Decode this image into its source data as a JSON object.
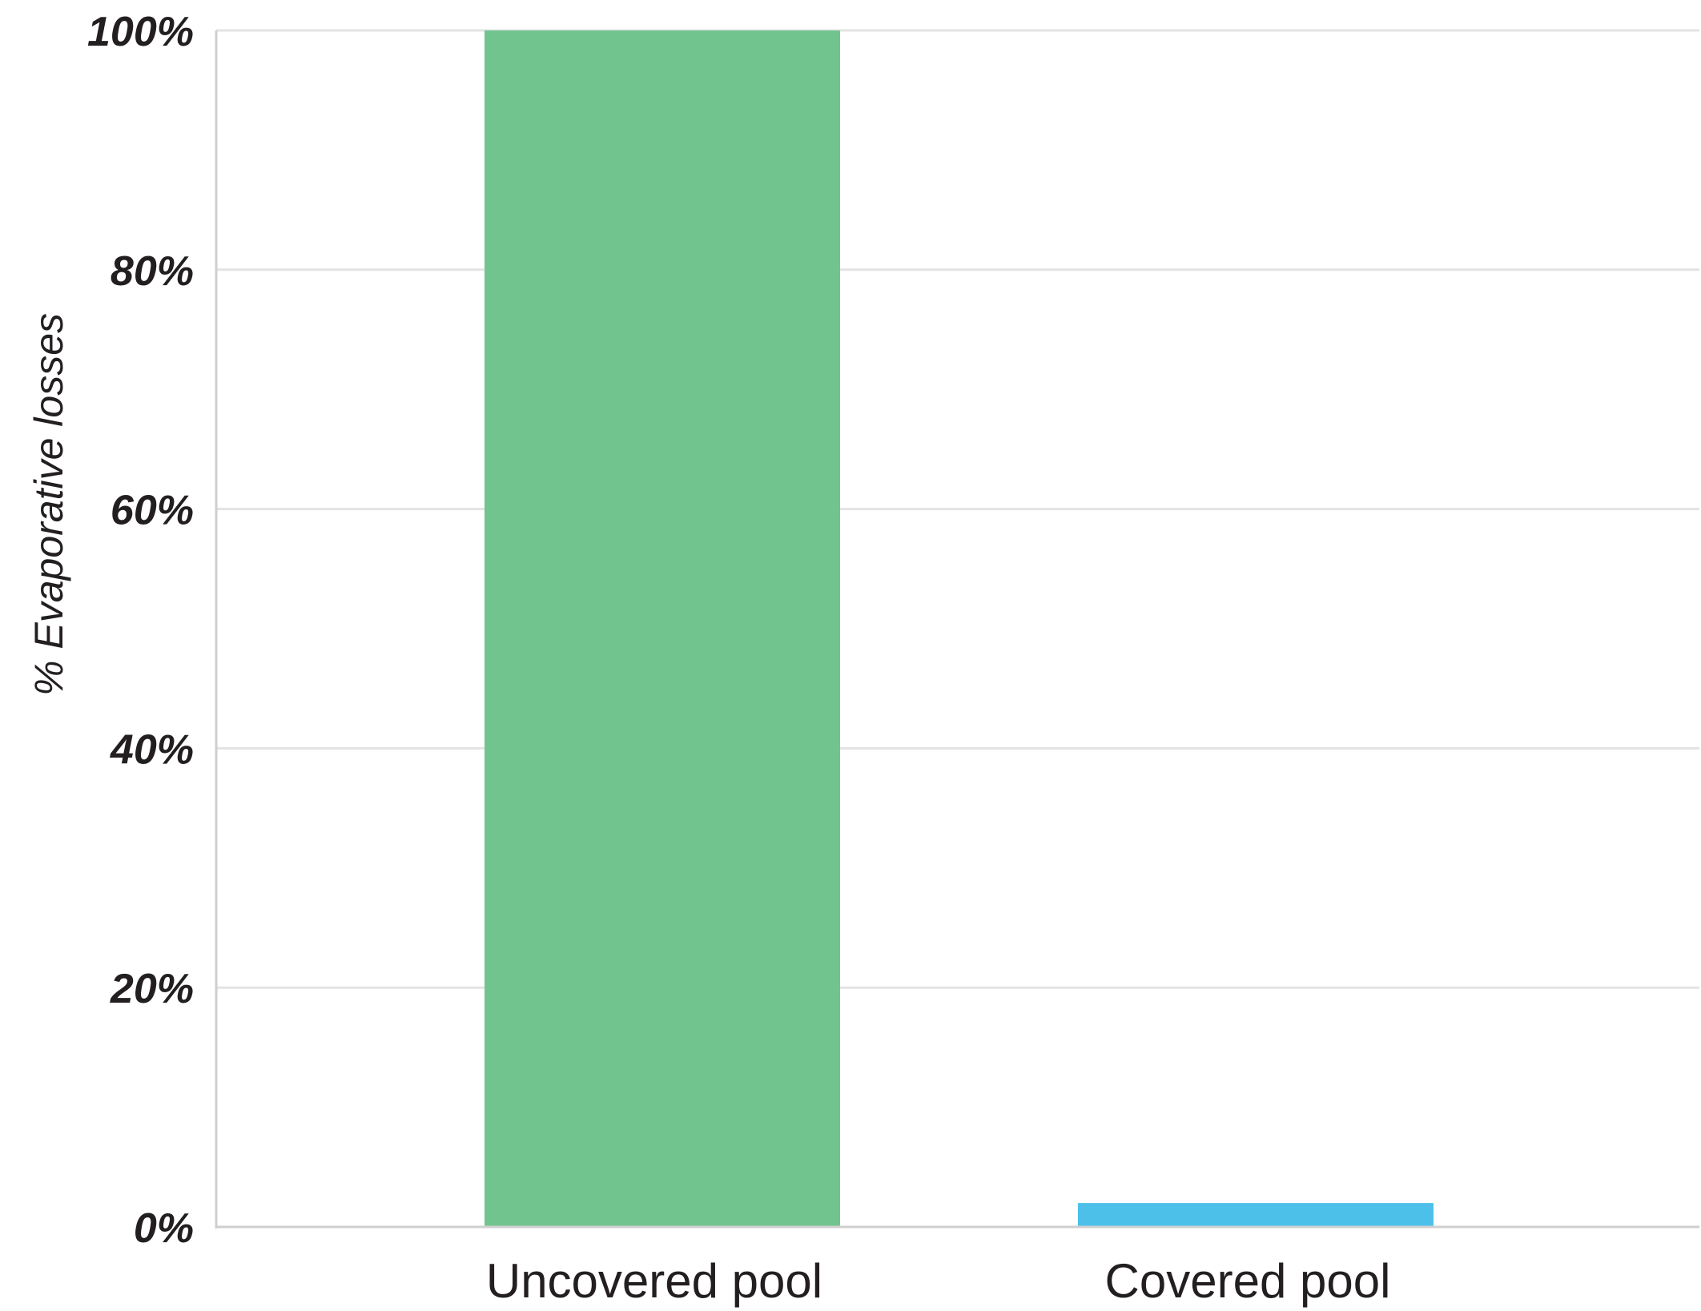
{
  "chart_data": {
    "type": "bar",
    "categories": [
      "Uncovered pool",
      "Covered pool"
    ],
    "values": [
      100,
      2
    ],
    "colors": [
      "#72c48e",
      "#4dc0ea"
    ],
    "ylabel": "% Evaporative losses",
    "xlabel": "",
    "ylim": [
      0,
      100
    ],
    "yticks": [
      0,
      20,
      40,
      60,
      80,
      100
    ],
    "ytick_labels": [
      "0%",
      "20%",
      "40%",
      "60%",
      "80%",
      "100%"
    ],
    "grid": "horizontal",
    "legend": "none"
  }
}
